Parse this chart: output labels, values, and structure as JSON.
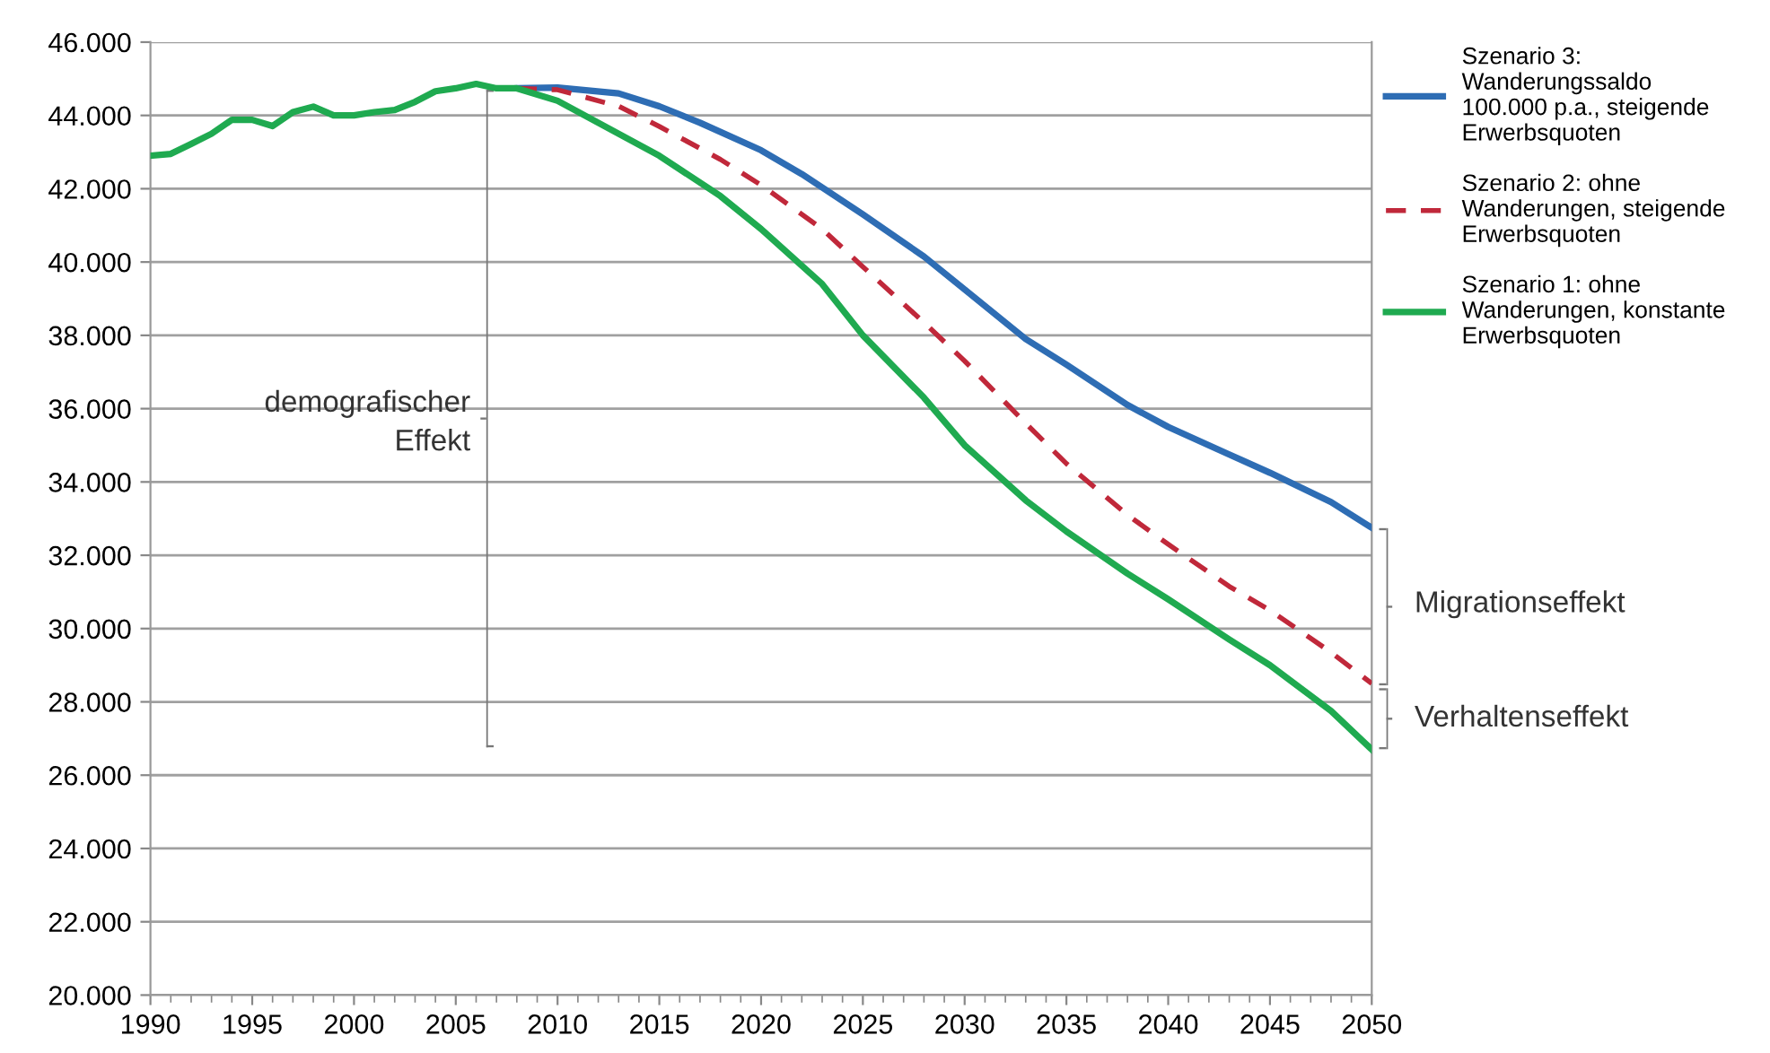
{
  "chart_data": {
    "type": "line",
    "series": [
      {
        "name": "Szenario 3:\nWanderungssaldo\n100.000 p.a., steigende\nErwerbsquoten",
        "color": "#2e6db4",
        "line_style": "solid",
        "x": [
          2008,
          2010,
          2013,
          2015,
          2017,
          2020,
          2022,
          2025,
          2028,
          2030,
          2033,
          2035,
          2038,
          2040,
          2043,
          2045,
          2048,
          2050
        ],
        "values": [
          44740,
          44760,
          44600,
          44250,
          43800,
          43050,
          42400,
          41300,
          40150,
          39250,
          37900,
          37200,
          36100,
          35500,
          34750,
          34250,
          33450,
          32750
        ]
      },
      {
        "name": "Szenario 2: ohne\nWanderungen, steigende\nErwerbsquoten",
        "color": "#c0283a",
        "line_style": "dashed",
        "x": [
          2008,
          2010,
          2013,
          2015,
          2018,
          2020,
          2023,
          2025,
          2028,
          2030,
          2033,
          2035,
          2038,
          2040,
          2043,
          2045,
          2048,
          2050
        ],
        "values": [
          44740,
          44700,
          44250,
          43700,
          42800,
          42100,
          40900,
          39870,
          38350,
          37300,
          35600,
          34500,
          33100,
          32300,
          31150,
          30500,
          29350,
          28500
        ]
      },
      {
        "name": "Szenario 1: ohne\nWanderungen, konstante\nErwerbsquoten",
        "color": "#1faa50",
        "line_style": "solid",
        "x": [
          1990,
          1991,
          1992,
          1993,
          1994,
          1995,
          1996,
          1997,
          1998,
          1999,
          2000,
          2001,
          2002,
          2003,
          2004,
          2005,
          2006,
          2007,
          2008,
          2010,
          2013,
          2015,
          2018,
          2020,
          2023,
          2025,
          2028,
          2030,
          2033,
          2035,
          2038,
          2040,
          2043,
          2045,
          2048,
          2050
        ],
        "values": [
          42900,
          42950,
          43220,
          43500,
          43880,
          43880,
          43710,
          44090,
          44240,
          44000,
          44000,
          44090,
          44150,
          44370,
          44660,
          44740,
          44860,
          44740,
          44740,
          44400,
          43500,
          42900,
          41800,
          40900,
          39400,
          38000,
          36300,
          35000,
          33500,
          32650,
          31500,
          30800,
          29700,
          29000,
          27750,
          26700
        ]
      }
    ],
    "xlim": [
      1990,
      2050
    ],
    "xticks": [
      1990,
      1995,
      2000,
      2005,
      2010,
      2015,
      2020,
      2025,
      2030,
      2035,
      2040,
      2045,
      2050
    ],
    "ylim": [
      20000,
      46000
    ],
    "yticks": [
      {
        "value": 20000,
        "label": "20.000"
      },
      {
        "value": 22000,
        "label": "22.000"
      },
      {
        "value": 24000,
        "label": "24.000"
      },
      {
        "value": 26000,
        "label": "26.000"
      },
      {
        "value": 28000,
        "label": "28.000"
      },
      {
        "value": 30000,
        "label": "30.000"
      },
      {
        "value": 32000,
        "label": "32.000"
      },
      {
        "value": 34000,
        "label": "34.000"
      },
      {
        "value": 36000,
        "label": "36.000"
      },
      {
        "value": 38000,
        "label": "38.000"
      },
      {
        "value": 40000,
        "label": "40.000"
      },
      {
        "value": 42000,
        "label": "42.000"
      },
      {
        "value": 44000,
        "label": "44.000"
      },
      {
        "value": 46000,
        "label": "46.000"
      }
    ],
    "grid": "y",
    "legend": "top right",
    "marker": "none",
    "annotations": [
      "demografischer\nEffekt",
      "Migrationseffekt",
      "Verhaltenseffekt"
    ]
  }
}
